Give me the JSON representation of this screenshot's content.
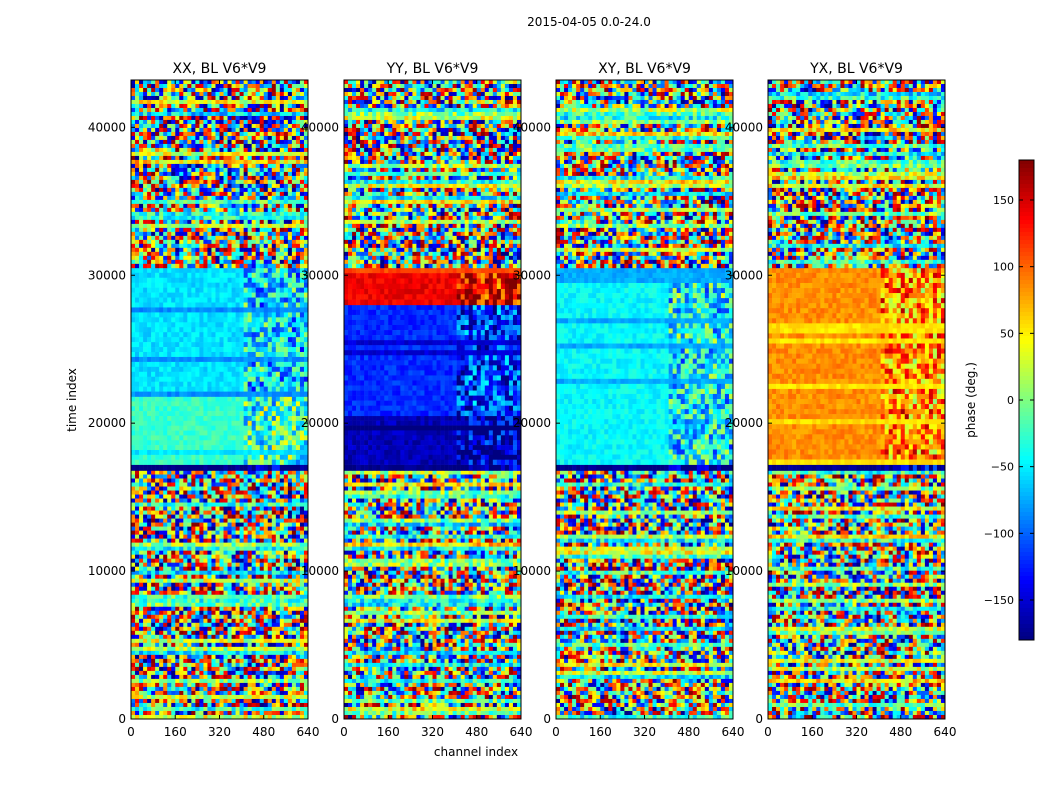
{
  "figure": {
    "suptitle": "2015-04-05 0.0-24.0",
    "ylabel": "time index",
    "xlabel": "channel index"
  },
  "chart_data": [
    {
      "type": "heatmap",
      "title": "XX, BL V6*V9",
      "polarization": "XX",
      "xlim": [
        0,
        640
      ],
      "ylim": [
        0,
        43200
      ],
      "xticks": [
        0,
        160,
        320,
        480,
        640
      ],
      "yticks": [
        0,
        10000,
        20000,
        30000,
        40000
      ],
      "bands": [
        {
          "t": [
            0,
            16800
          ],
          "phase": "noise"
        },
        {
          "t": [
            16800,
            17200
          ],
          "phase": -180
        },
        {
          "t": [
            17200,
            21800
          ],
          "phase": -25
        },
        {
          "t": [
            21800,
            30500
          ],
          "phase": -55
        },
        {
          "t": [
            30500,
            43200
          ],
          "phase": "noise"
        }
      ]
    },
    {
      "type": "heatmap",
      "title": "YY, BL V6*V9",
      "polarization": "YY",
      "xlim": [
        0,
        640
      ],
      "ylim": [
        0,
        43200
      ],
      "xticks": [
        0,
        160,
        320,
        480,
        640
      ],
      "yticks": [
        0,
        10000,
        20000,
        30000,
        40000
      ],
      "bands": [
        {
          "t": [
            0,
            16800
          ],
          "phase": "noise"
        },
        {
          "t": [
            16800,
            17200
          ],
          "phase": -180
        },
        {
          "t": [
            17200,
            20500
          ],
          "phase": -160
        },
        {
          "t": [
            20500,
            28000
          ],
          "phase": -120
        },
        {
          "t": [
            28000,
            30500
          ],
          "phase": 140
        },
        {
          "t": [
            30500,
            43200
          ],
          "phase": "noise"
        }
      ]
    },
    {
      "type": "heatmap",
      "title": "XY, BL V6*V9",
      "polarization": "XY",
      "xlim": [
        0,
        640
      ],
      "ylim": [
        0,
        43200
      ],
      "xticks": [
        0,
        160,
        320,
        480,
        640
      ],
      "yticks": [
        0,
        10000,
        20000,
        30000,
        40000
      ],
      "bands": [
        {
          "t": [
            0,
            16800
          ],
          "phase": "noise"
        },
        {
          "t": [
            16800,
            17200
          ],
          "phase": -180
        },
        {
          "t": [
            17200,
            30500
          ],
          "phase": -45
        },
        {
          "t": [
            30500,
            43200
          ],
          "phase": "noise"
        }
      ]
    },
    {
      "type": "heatmap",
      "title": "YX, BL V6*V9",
      "polarization": "YX",
      "xlim": [
        0,
        640
      ],
      "ylim": [
        0,
        43200
      ],
      "xticks": [
        0,
        160,
        320,
        480,
        640
      ],
      "yticks": [
        0,
        10000,
        20000,
        30000,
        40000
      ],
      "bands": [
        {
          "t": [
            0,
            16800
          ],
          "phase": "noise"
        },
        {
          "t": [
            16800,
            17200
          ],
          "phase": -180
        },
        {
          "t": [
            17200,
            30500
          ],
          "phase": 85
        },
        {
          "t": [
            30500,
            43200
          ],
          "phase": "noise"
        }
      ]
    }
  ],
  "colorbar": {
    "label": "phase (deg.)",
    "colormap": "jet",
    "range": [
      -180,
      180
    ],
    "ticks": [
      -150,
      -100,
      -50,
      0,
      50,
      100,
      150
    ],
    "tick_labels": [
      "−150",
      "−100",
      "−50",
      "0",
      "50",
      "100",
      "150"
    ]
  }
}
